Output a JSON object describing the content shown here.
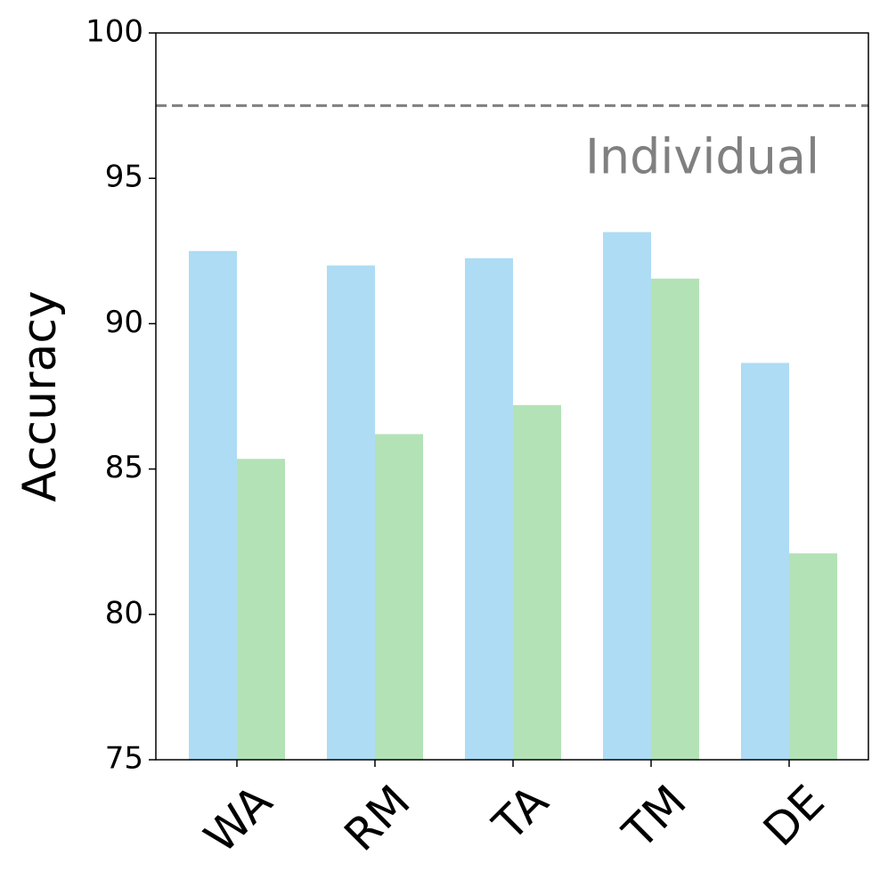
{
  "chart_data": {
    "type": "bar",
    "ylabel": "Accuracy",
    "categories": [
      "WA",
      "RM",
      "TA",
      "TM",
      "DE"
    ],
    "series": [
      {
        "color": "#aedcf4",
        "values": [
          92.5,
          92.0,
          92.25,
          93.15,
          88.65
        ]
      },
      {
        "color": "#b3e2b6",
        "values": [
          85.35,
          86.2,
          87.2,
          91.55,
          82.1
        ]
      }
    ],
    "ylim": [
      75,
      100
    ],
    "yticks": [
      75,
      80,
      85,
      90,
      95,
      100
    ],
    "reference_line": {
      "value": 97.5,
      "label": "Individual",
      "color": "#808080"
    }
  }
}
